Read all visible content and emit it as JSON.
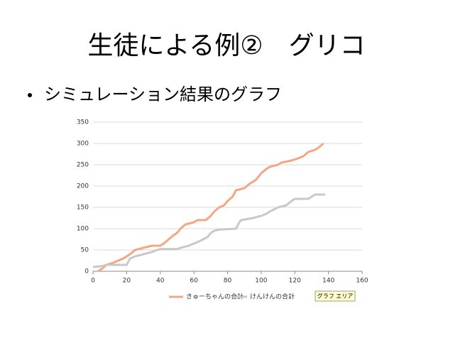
{
  "slide": {
    "title": "生徒による例②　グリコ",
    "bullet": "シミュレーション結果のグラフ"
  },
  "chart_data": {
    "type": "line",
    "xlim": [
      0,
      160
    ],
    "xticks": [
      0,
      20,
      40,
      60,
      80,
      100,
      120,
      140,
      160
    ],
    "ylim": [
      0,
      350
    ],
    "yticks": [
      0,
      50,
      100,
      150,
      200,
      250,
      300,
      350
    ],
    "grid": true,
    "legend": "bottom",
    "annotation": "グラフ エリア",
    "series": [
      {
        "name": "きゅーちゃんの合計",
        "color": "#f4a582",
        "x": [
          3,
          5,
          8,
          12,
          15,
          18,
          22,
          25,
          30,
          35,
          40,
          42,
          45,
          48,
          50,
          52,
          55,
          60,
          62,
          67,
          70,
          72,
          75,
          78,
          80,
          83,
          85,
          90,
          93,
          97,
          100,
          103,
          105,
          110,
          112,
          118,
          122,
          125,
          128,
          132,
          134,
          137
        ],
        "values": [
          0,
          5,
          15,
          20,
          25,
          30,
          40,
          50,
          55,
          60,
          60,
          65,
          75,
          85,
          90,
          100,
          110,
          115,
          120,
          120,
          130,
          140,
          150,
          155,
          165,
          175,
          190,
          195,
          205,
          215,
          230,
          240,
          245,
          250,
          255,
          260,
          265,
          270,
          280,
          285,
          290,
          300
        ]
      },
      {
        "name": "けんけんの合計",
        "color": "#c8c8c8",
        "x": [
          0,
          5,
          8,
          20,
          22,
          25,
          30,
          35,
          38,
          40,
          50,
          52,
          57,
          60,
          63,
          68,
          70,
          72,
          75,
          85,
          87,
          88,
          95,
          100,
          103,
          105,
          110,
          115,
          118,
          120,
          128,
          130,
          132,
          138
        ],
        "values": [
          10,
          12,
          15,
          15,
          30,
          35,
          40,
          45,
          50,
          52,
          52,
          55,
          60,
          65,
          70,
          80,
          90,
          95,
          98,
          100,
          115,
          120,
          125,
          130,
          135,
          140,
          150,
          155,
          165,
          170,
          170,
          175,
          180,
          180
        ]
      }
    ]
  }
}
